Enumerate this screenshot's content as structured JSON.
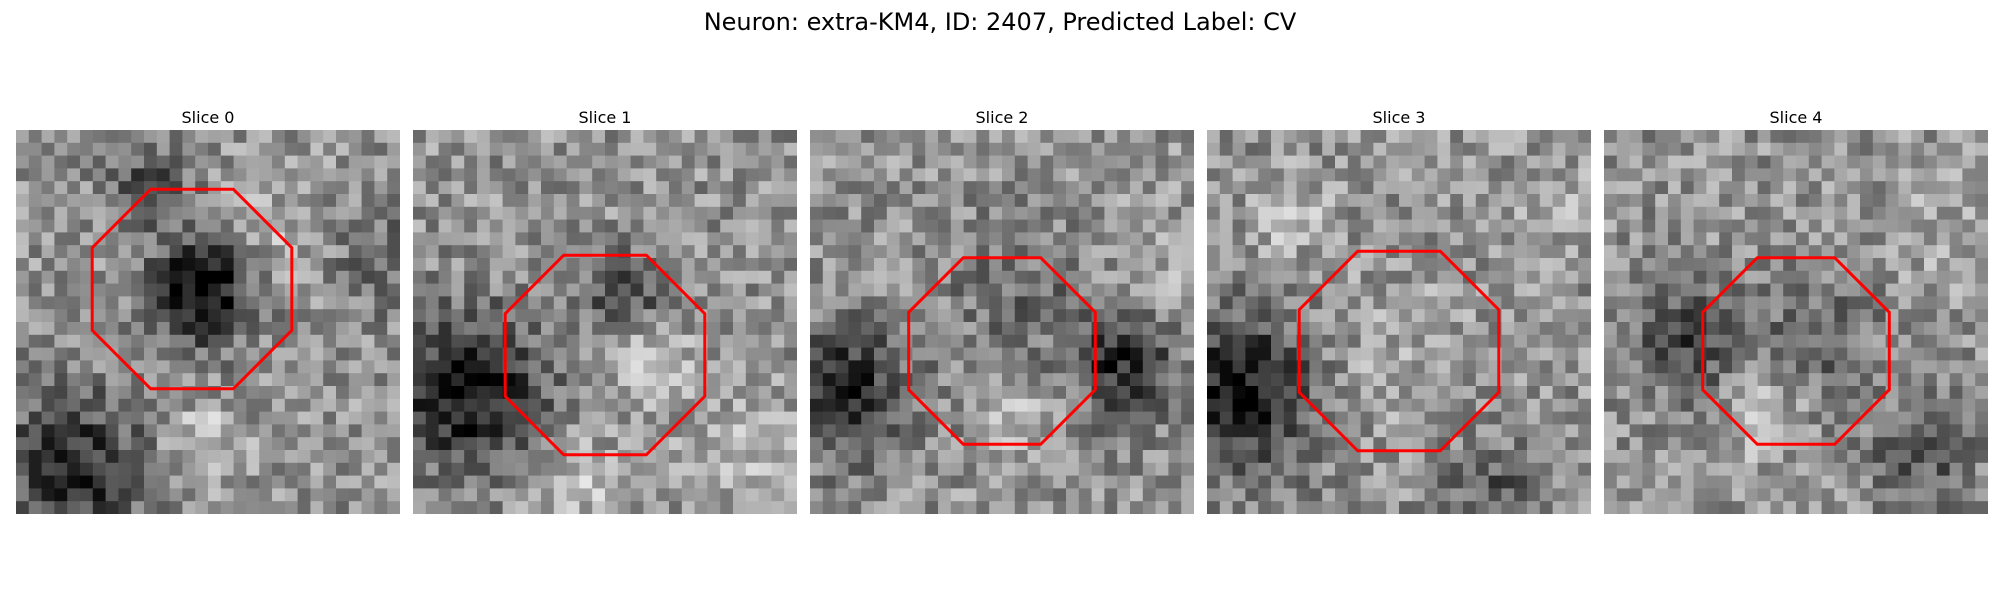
{
  "figure": {
    "title": "Neuron: extra-KM4, ID: 2407, Predicted Label: CV",
    "outline_color": "#ff0000",
    "panels": [
      {
        "title": "Slice 0",
        "label_value": "0"
      },
      {
        "title": "Slice 1",
        "label_value": "1"
      },
      {
        "title": "Slice 2",
        "label_value": "2"
      },
      {
        "title": "Slice 3",
        "label_value": "3"
      },
      {
        "title": "Slice 4",
        "label_value": "4"
      }
    ]
  }
}
